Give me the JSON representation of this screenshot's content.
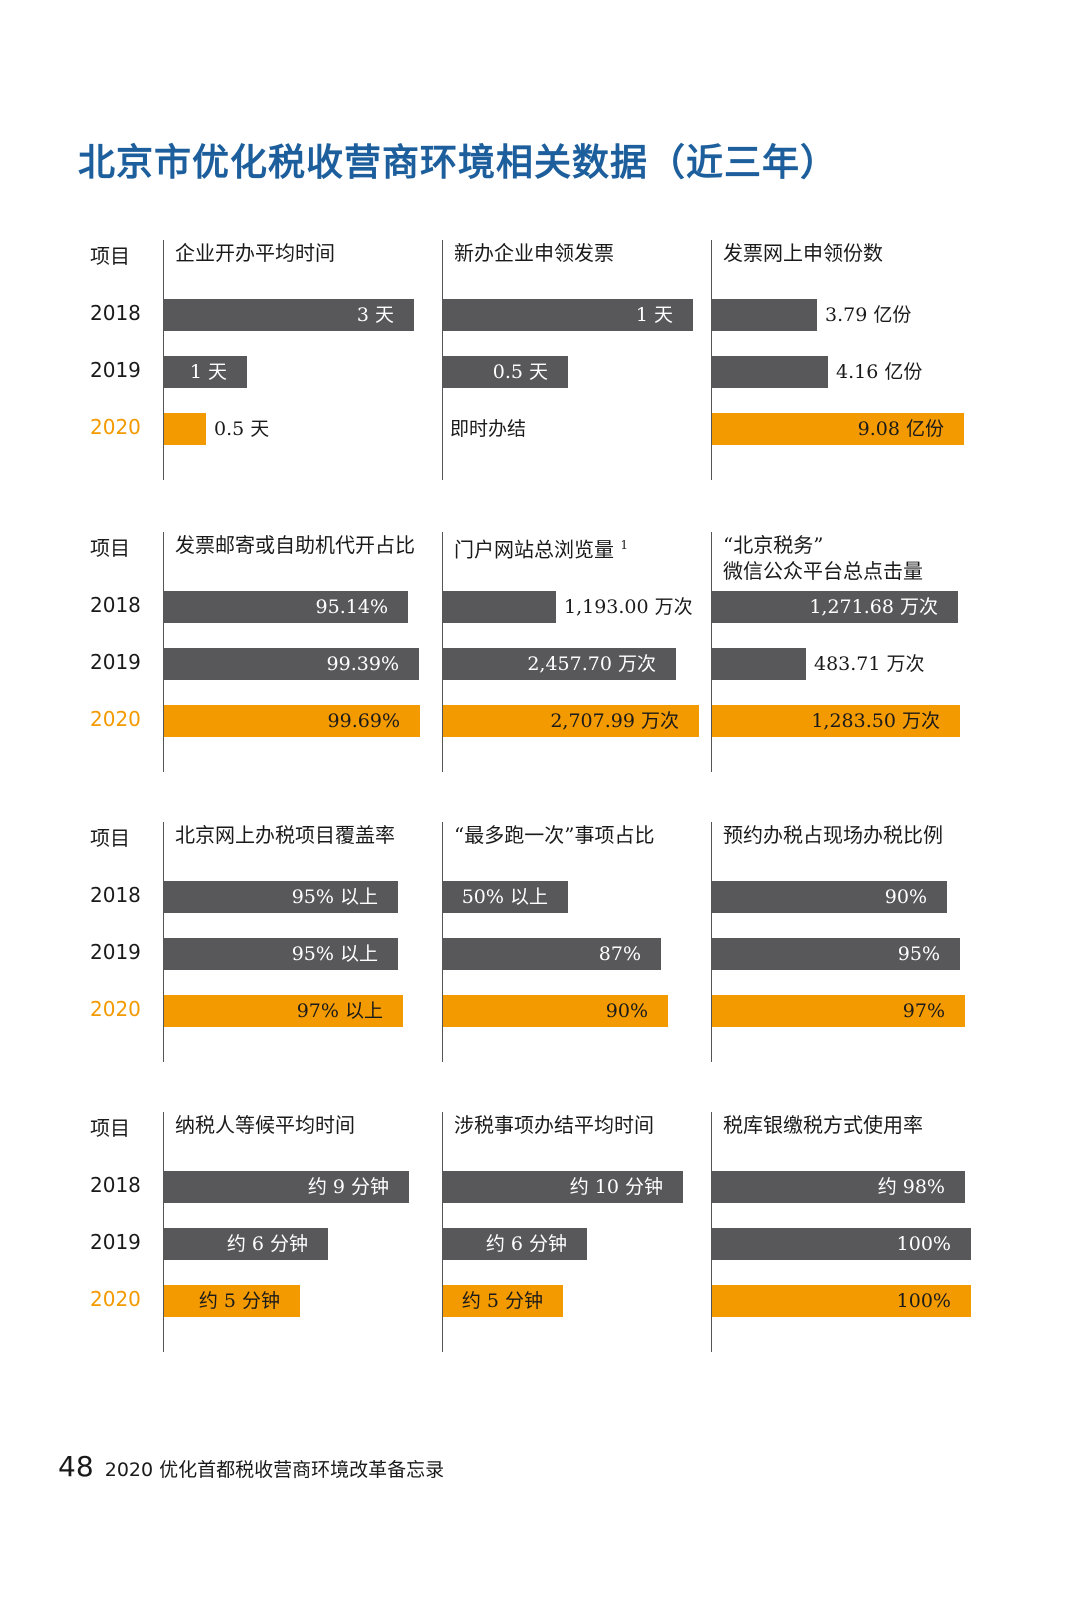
{
  "title": "北京市优化税收营商环境相关数据（近三年）",
  "colors": {
    "title": "#1d5f9c",
    "bar_gray": "#58585a",
    "bar_orange": "#f29a00",
    "year_highlight": "#f29a00"
  },
  "footer": {
    "page_number": "48",
    "text": "2020 优化首都税收营商环境改革备忘录"
  },
  "chart_data": [
    {
      "type": "bar",
      "row_label": "项目",
      "years": [
        "2018",
        "2019",
        "2020"
      ],
      "panels": [
        {
          "title": "企业开办平均时间",
          "unit": "天",
          "values": [
            3,
            1,
            0.5
          ],
          "labels": [
            "3 天",
            "1 天",
            "0.5 天"
          ],
          "scale_max": 3.6
        },
        {
          "title": "新办企业申领发票",
          "unit": "天",
          "values": [
            1,
            0.5,
            0
          ],
          "labels": [
            "1 天",
            "0.5 天",
            "即时办结"
          ],
          "scale_max": 1.2
        },
        {
          "title": "发票网上申领份数",
          "unit": "亿份",
          "values": [
            3.79,
            4.16,
            9.08
          ],
          "labels": [
            "3.79 亿份",
            "4.16 亿份",
            "9.08 亿份"
          ],
          "scale_max": 10.8
        }
      ]
    },
    {
      "type": "bar",
      "row_label": "项目",
      "years": [
        "2018",
        "2019",
        "2020"
      ],
      "panels": [
        {
          "title": "发票邮寄或自助机代开占比",
          "unit": "%",
          "values": [
            95.14,
            99.39,
            99.69
          ],
          "labels": [
            "95.14%",
            "99.39%",
            "99.69%"
          ],
          "scale_max": 117
        },
        {
          "title": "门户网站总浏览量",
          "footnote": "1",
          "unit": "万次",
          "values": [
            1193.0,
            2457.7,
            2707.99
          ],
          "labels": [
            "1,193.00 万次",
            "2,457.70 万次",
            "2,707.99 万次"
          ],
          "scale_max": 3170
        },
        {
          "title": "“北京税务”\n微信公众平台总点击量",
          "unit": "万次",
          "values": [
            1271.68,
            483.71,
            1283.5
          ],
          "labels": [
            "1,271.68 万次",
            "483.71 万次",
            "1,283.50 万次"
          ],
          "scale_max": 1550
        }
      ]
    },
    {
      "type": "bar",
      "row_label": "项目",
      "years": [
        "2018",
        "2019",
        "2020"
      ],
      "panels": [
        {
          "title": "北京网上办税项目覆盖率",
          "unit": "%",
          "values": [
            95,
            95,
            97
          ],
          "labels": [
            "95% 以上",
            "95% 以上",
            "97% 以上"
          ],
          "scale_max": 122
        },
        {
          "title": "“最多跑一次”事项占比",
          "unit": "%",
          "values": [
            50,
            87,
            90
          ],
          "labels": [
            "50% 以上",
            "87%",
            "90%"
          ],
          "scale_max": 120
        },
        {
          "title": "预约办税占现场办税比例",
          "unit": "%",
          "values": [
            90,
            95,
            97
          ],
          "labels": [
            "90%",
            "95%",
            "97%"
          ],
          "scale_max": 115
        }
      ]
    },
    {
      "type": "bar",
      "row_label": "项目",
      "years": [
        "2018",
        "2019",
        "2020"
      ],
      "panels": [
        {
          "title": "纳税人等候平均时间",
          "unit": "分钟",
          "values": [
            9,
            6,
            5
          ],
          "labels": [
            "约 9 分钟",
            "约 6 分钟",
            "约 5 分钟"
          ],
          "scale_max": 11
        },
        {
          "title": "涉税事项办结平均时间",
          "unit": "分钟",
          "values": [
            10,
            6,
            5
          ],
          "labels": [
            "约 10 分钟",
            "约 6 分钟",
            "约 5 分钟"
          ],
          "scale_max": 12.5
        },
        {
          "title": "税库银缴税方式使用率",
          "unit": "%",
          "values": [
            98,
            100,
            100
          ],
          "labels": [
            "约 98%",
            "100%",
            "100%"
          ],
          "scale_max": 116
        }
      ]
    }
  ]
}
